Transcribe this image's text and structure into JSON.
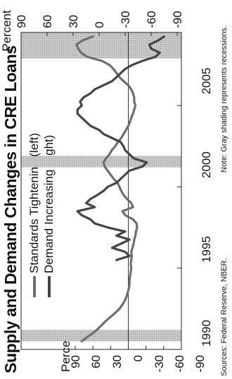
{
  "title": "Supply and Demand Changes in CRE Loans",
  "legend": [
    {
      "label": "Standards Tightening (left)",
      "color": "#6e6e6e"
    },
    {
      "label": "Demand Increasing (right)",
      "color": "#454545"
    }
  ],
  "axes": {
    "left_unit": "Percent",
    "right_unit": "Percent",
    "left_ticks": [
      "90",
      "60",
      "30",
      "0",
      "-30",
      "-60",
      "-90"
    ],
    "right_ticks": [
      "90",
      "60",
      "30",
      "0",
      "-30",
      "-60",
      "-90"
    ],
    "x_ticks": [
      "1990",
      "1995",
      "2000",
      "2005"
    ]
  },
  "footer": {
    "sources": "Sources: Federal Reserve, NBER.",
    "note": "Note: Gray shading represents recessions."
  },
  "chart_data": {
    "type": "line",
    "title": "Supply and Demand Changes in CRE Loans",
    "x_range": [
      1990.0,
      2009.5
    ],
    "y_left_range": [
      -90,
      90
    ],
    "y_right_range": [
      -90,
      90
    ],
    "y_ticks": [
      90,
      60,
      30,
      0,
      -30,
      -60,
      -90
    ],
    "x_ticks": [
      1990,
      1995,
      2000,
      2005
    ],
    "recessions": [
      [
        1990.5,
        1991.2
      ],
      [
        2001.2,
        2001.9
      ],
      [
        2007.9,
        2009.5
      ]
    ],
    "grid": false,
    "legend_position": "top-center",
    "series": [
      {
        "name": "Standards Tightening (left)",
        "axis": "left",
        "color": "#6e6e6e",
        "x": [
          1990.5,
          1990.75,
          1991.0,
          1991.25,
          1991.5,
          1991.75,
          1992.0,
          1992.25,
          1992.5,
          1992.75,
          1993.0,
          1993.25,
          1993.5,
          1993.75,
          1994.0,
          1994.25,
          1994.5,
          1994.75,
          1995.0,
          1995.25,
          1995.5,
          1995.75,
          1996.0,
          1996.25,
          1996.5,
          1996.75,
          1997.0,
          1997.25,
          1997.5,
          1997.75,
          1998.0,
          1998.25,
          1998.5,
          1998.75,
          1999.0,
          1999.25,
          1999.5,
          1999.75,
          2000.0,
          2000.25,
          2000.5,
          2000.75,
          2001.0,
          2001.25,
          2001.5,
          2001.75,
          2002.0,
          2002.25,
          2002.5,
          2002.75,
          2003.0,
          2003.25,
          2003.5,
          2003.75,
          2004.0,
          2004.25,
          2004.5,
          2004.75,
          2005.0,
          2005.25,
          2005.5,
          2005.75,
          2006.0,
          2006.25,
          2006.5,
          2006.75,
          2007.0,
          2007.25,
          2007.5,
          2007.75,
          2008.0,
          2008.25,
          2008.5,
          2008.75,
          2009.0,
          2009.25
        ],
        "values": [
          79,
          70,
          60,
          52,
          45,
          38,
          30,
          22,
          15,
          10,
          6,
          3,
          1,
          -1,
          -2,
          -2,
          -3,
          -4,
          -5,
          -4,
          -5,
          -6,
          -5,
          -7,
          -9,
          -10,
          -12,
          -13,
          -15,
          -14,
          -8,
          5,
          10,
          -8,
          -5,
          2,
          8,
          12,
          15,
          18,
          25,
          30,
          35,
          40,
          42,
          38,
          32,
          28,
          22,
          18,
          12,
          8,
          4,
          0,
          -3,
          -5,
          -8,
          -10,
          -12,
          -10,
          -10,
          -8,
          -5,
          0,
          8,
          15,
          20,
          25,
          32,
          45,
          70,
          80,
          85,
          88,
          78,
          60
        ]
      },
      {
        "name": "Demand Increasing (right)",
        "axis": "right",
        "color": "#454545",
        "x": [
          1995.5,
          1995.75,
          1996.0,
          1996.25,
          1996.5,
          1996.75,
          1997.0,
          1997.25,
          1997.5,
          1997.75,
          1998.0,
          1998.25,
          1998.5,
          1998.75,
          1999.0,
          1999.25,
          1999.5,
          1999.75,
          2000.0,
          2000.25,
          2000.5,
          2000.75,
          2001.0,
          2001.25,
          2001.5,
          2001.75,
          2002.0,
          2002.25,
          2002.5,
          2002.75,
          2003.0,
          2003.25,
          2003.5,
          2003.75,
          2004.0,
          2004.25,
          2004.5,
          2004.75,
          2005.0,
          2005.25,
          2005.5,
          2005.75,
          2006.0,
          2006.25,
          2006.5,
          2006.75,
          2007.0,
          2007.25,
          2007.5,
          2007.75,
          2008.0,
          2008.25,
          2008.5,
          2008.75,
          2009.0,
          2009.25
        ],
        "values": [
          -20,
          -35,
          -30,
          -15,
          -25,
          -35,
          -20,
          -30,
          -10,
          5,
          10,
          20,
          25,
          5,
          15,
          10,
          2,
          -5,
          -10,
          -20,
          -25,
          -30,
          -35,
          -50,
          -55,
          -40,
          -35,
          -30,
          -28,
          -25,
          -15,
          -5,
          0,
          10,
          15,
          20,
          25,
          25,
          20,
          22,
          18,
          10,
          5,
          -5,
          -15,
          -20,
          -25,
          -30,
          -38,
          -50,
          -65,
          -70,
          -60,
          -58,
          -68,
          -75
        ]
      }
    ]
  }
}
